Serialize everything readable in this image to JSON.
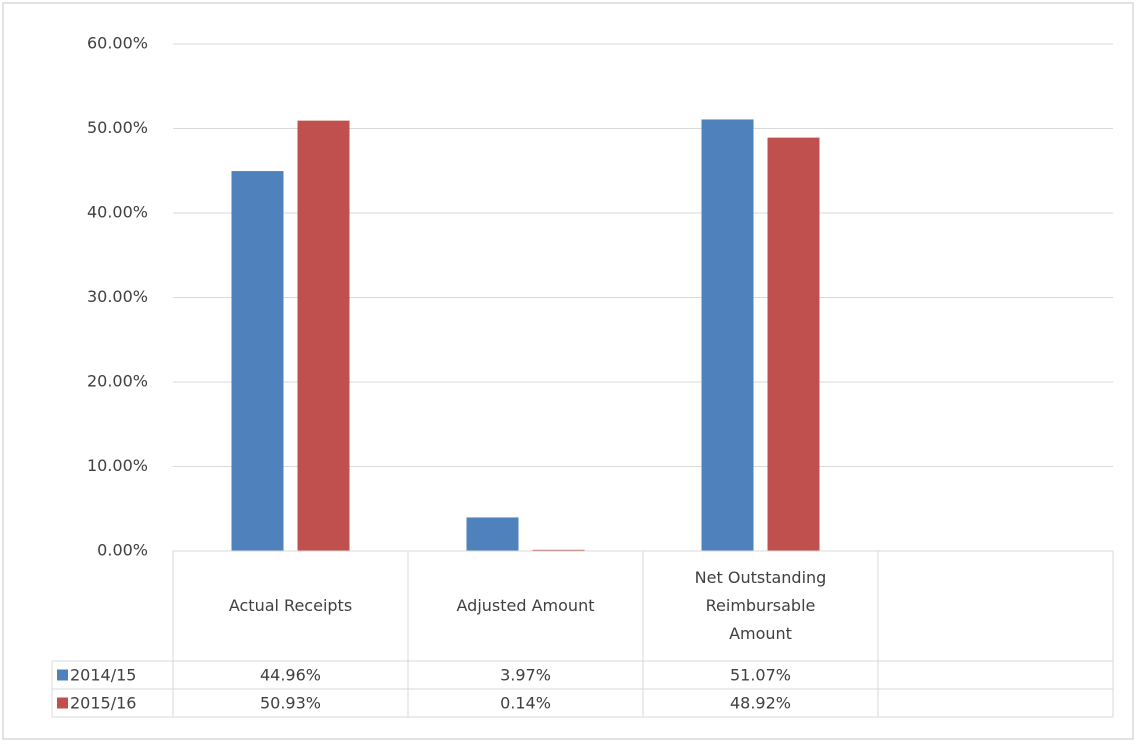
{
  "chart_data": {
    "type": "bar",
    "categories": [
      "Actual Receipts",
      "Adjusted Amount",
      "Net Outstanding Reimbursable Amount",
      null
    ],
    "series": [
      {
        "name": "2014/15",
        "color": "#4f81bd",
        "values": [
          44.96,
          3.97,
          51.07,
          null
        ],
        "value_labels": [
          "44.96%",
          "3.97%",
          "51.07%",
          null
        ]
      },
      {
        "name": "2015/16",
        "color": "#c0504d",
        "values": [
          50.93,
          0.14,
          48.92,
          null
        ],
        "value_labels": [
          "50.93%",
          "0.14%",
          "48.92%",
          null
        ]
      }
    ],
    "ylim": [
      0,
      60
    ],
    "yticks": [
      {
        "value": 0,
        "label": "0.00%"
      },
      {
        "value": 10,
        "label": "10.00%"
      },
      {
        "value": 20,
        "label": "20.00%"
      },
      {
        "value": 30,
        "label": "30.00%"
      },
      {
        "value": 40,
        "label": "40.00%"
      },
      {
        "value": 50,
        "label": "50.00%"
      },
      {
        "value": 60,
        "label": "60.00%"
      }
    ],
    "grid": true,
    "legend": "data-table"
  }
}
